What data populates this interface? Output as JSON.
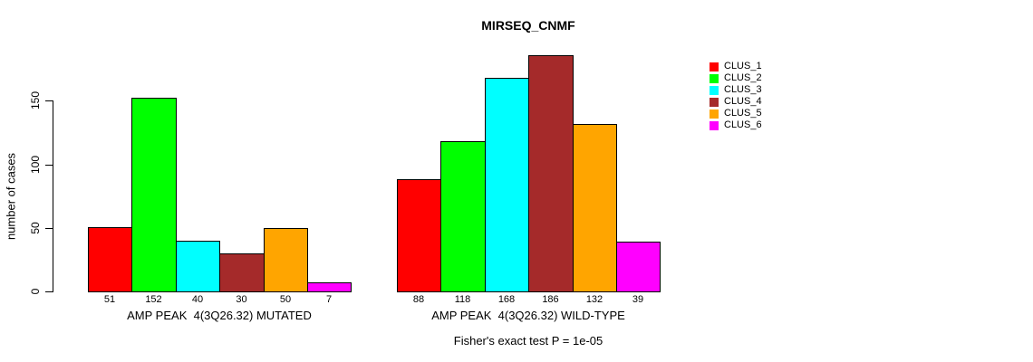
{
  "title": "MIRSEQ_CNMF",
  "ylabel": "number of cases",
  "footer": "Fisher's exact test P = 1e-05",
  "chart_data": {
    "type": "bar",
    "title": "MIRSEQ_CNMF",
    "ylabel": "number of cases",
    "xlabel": "",
    "ylim": [
      0,
      186
    ],
    "yticks": [
      0,
      50,
      100,
      150
    ],
    "grid": false,
    "legend_position": "top-right",
    "bar_border_color": "#000000",
    "series_colors": [
      "#ff0000",
      "#00ff00",
      "#00ffff",
      "#a52a2a",
      "#ffa500",
      "#ff00ff"
    ],
    "groups": [
      {
        "xlabel": "AMP PEAK  4(3Q26.32) MUTATED",
        "values": [
          51,
          152,
          40,
          30,
          50,
          7
        ]
      },
      {
        "xlabel": "AMP PEAK  4(3Q26.32) WILD-TYPE",
        "values": [
          88,
          118,
          168,
          186,
          132,
          39
        ]
      }
    ],
    "legend": [
      {
        "label": "CLUS_1",
        "color": "#ff0000"
      },
      {
        "label": "CLUS_2",
        "color": "#00ff00"
      },
      {
        "label": "CLUS_3",
        "color": "#00ffff"
      },
      {
        "label": "CLUS_4",
        "color": "#a52a2a"
      },
      {
        "label": "CLUS_5",
        "color": "#ffa500"
      },
      {
        "label": "CLUS_6",
        "color": "#ff00ff"
      }
    ],
    "annotation": "Fisher's exact test P = 1e-05"
  }
}
